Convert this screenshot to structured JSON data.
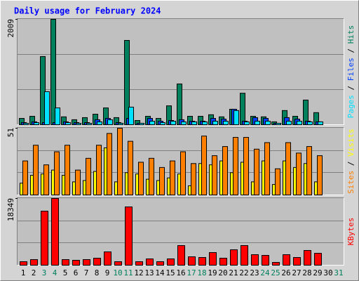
{
  "chart_data": [
    {
      "type": "bar",
      "title": "Daily usage for February 2024",
      "legend_separator": " / ",
      "ylim": [
        0,
        2009
      ],
      "yticks": [
        2009
      ],
      "series": [
        {
          "name": "Hits",
          "color": "#00805c",
          "values": [
            120,
            160,
            1300,
            2009,
            150,
            95,
            135,
            200,
            320,
            135,
            1607,
            80,
            160,
            120,
            360,
            777,
            160,
            160,
            190,
            150,
            295,
            600,
            160,
            150,
            55,
            270,
            160,
            470,
            230,
            null,
            null
          ]
        },
        {
          "name": "Files",
          "color": "#0040ff",
          "values": [
            40,
            55,
            40,
            40,
            55,
            40,
            40,
            95,
            120,
            40,
            120,
            27,
            120,
            67,
            80,
            95,
            67,
            67,
            120,
            107,
            295,
            67,
            135,
            120,
            27,
            135,
            107,
            67,
            55,
            null,
            null
          ]
        },
        {
          "name": "Pages",
          "color": "#00e0ff",
          "values": [
            27,
            40,
            630,
            320,
            40,
            27,
            27,
            55,
            95,
            27,
            335,
            27,
            67,
            40,
            67,
            55,
            55,
            55,
            67,
            67,
            270,
            55,
            67,
            67,
            27,
            67,
            67,
            55,
            55,
            null,
            null
          ]
        }
      ]
    },
    {
      "type": "bar",
      "ylim": [
        0,
        51
      ],
      "yticks": [
        51
      ],
      "series": [
        {
          "name": "Visits",
          "color": "#ffff00",
          "values": [
            9,
            15,
            16,
            19,
            15,
            10,
            11,
            18,
            36,
            10,
            17,
            16,
            12,
            11,
            13,
            16,
            7,
            24,
            23,
            26,
            17,
            25,
            10,
            26,
            8,
            26,
            21,
            24,
            10,
            null,
            null
          ]
        },
        {
          "name": "Sites",
          "color": "#ff8000",
          "values": [
            26,
            38,
            23,
            33,
            38,
            19,
            28,
            38,
            47,
            51,
            41,
            25,
            28,
            21,
            26,
            33,
            24,
            45,
            30,
            37,
            44,
            44,
            35,
            40,
            20,
            40,
            32,
            37,
            30,
            null,
            null
          ]
        }
      ]
    },
    {
      "type": "bar",
      "ylim": [
        0,
        18349
      ],
      "yticks": [
        18349
      ],
      "categories": [
        "1",
        "2",
        "3",
        "4",
        "5",
        "6",
        "7",
        "8",
        "9",
        "10",
        "11",
        "12",
        "13",
        "14",
        "15",
        "16",
        "17",
        "18",
        "19",
        "20",
        "21",
        "22",
        "23",
        "24",
        "25",
        "26",
        "27",
        "28",
        "29",
        "30",
        "31"
      ],
      "category_colors": [
        "#000000",
        "#000000",
        "#00805c",
        "#00805c",
        "#000000",
        "#000000",
        "#000000",
        "#000000",
        "#000000",
        "#00805c",
        "#00805c",
        "#000000",
        "#000000",
        "#000000",
        "#000000",
        "#000000",
        "#00805c",
        "#00805c",
        "#000000",
        "#000000",
        "#000000",
        "#000000",
        "#000000",
        "#00805c",
        "#00805c",
        "#000000",
        "#000000",
        "#000000",
        "#000000",
        "#000000",
        "#00805c"
      ],
      "series": [
        {
          "name": "KBytes",
          "color": "#ff0000",
          "values": [
            965,
            1544,
            14860,
            18349,
            1544,
            1351,
            1544,
            1930,
            3667,
            965,
            16030,
            965,
            1737,
            965,
            1737,
            5400,
            2316,
            2123,
            3474,
            1930,
            4245,
            5400,
            2895,
            2702,
            770,
            2895,
            2123,
            4053,
            3281,
            null,
            null
          ]
        }
      ]
    }
  ]
}
